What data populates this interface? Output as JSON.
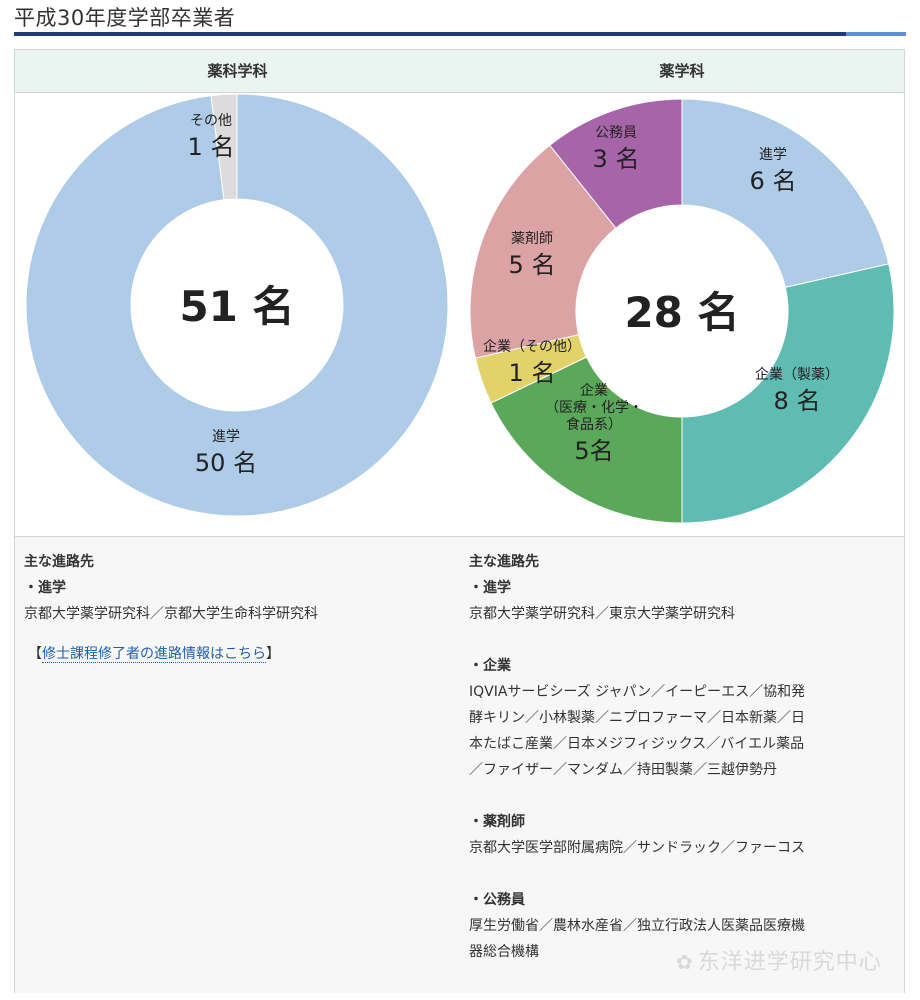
{
  "page_title": "平成30年度学部卒業者",
  "columns": [
    {
      "header": "薬科学科",
      "center_label": "51 名",
      "info": {
        "heading": "主な進路先",
        "sections": [
          {
            "title": "・進学",
            "text": "京都大学薬学研究科／京都大学生命科学研究科"
          }
        ],
        "link_prefix": "【",
        "link_text": "修士課程修了者の進路情報はこちら",
        "link_suffix": "】"
      }
    },
    {
      "header": "薬学科",
      "center_label": "28 名",
      "info": {
        "heading": "主な進路先",
        "sections": [
          {
            "title": "・進学",
            "lines": [
              "京都大学薬学研究科／東京大学薬学研究科"
            ]
          },
          {
            "title": "・企業",
            "lines": [
              "IQVIAサービシーズ ジャパン／イーピーエス／協和発",
              "酵キリン／小林製薬／ニプロファーマ／日本新薬／日",
              "本たばこ産業／日本メジフィジックス／バイエル薬品",
              "／ファイザー／マンダム／持田製薬／三越伊勢丹"
            ]
          },
          {
            "title": "・薬剤師",
            "lines": [
              "京都大学医学部附属病院／サンドラック／ファーコス"
            ]
          },
          {
            "title": "・公務員",
            "lines": [
              "厚生労働省／農林水産省／独立行政法人医薬品医療機",
              "器総合機構"
            ]
          }
        ]
      }
    }
  ],
  "chart_data": [
    {
      "type": "pie",
      "title": "薬科学科",
      "total_label": "51 名",
      "slices": [
        {
          "label": "進学",
          "value": 50,
          "value_label": "50 名",
          "color": "#aecbe8"
        },
        {
          "label": "その他",
          "value": 1,
          "value_label": "1 名",
          "color": "#dcdcdc"
        }
      ]
    },
    {
      "type": "pie",
      "title": "薬学科",
      "total_label": "28 名",
      "slices": [
        {
          "label": "進学",
          "value": 6,
          "value_label": "6 名",
          "color": "#aecbe8"
        },
        {
          "label": "企業（製薬）",
          "value": 8,
          "value_label": "8 名",
          "color": "#5fbcb3"
        },
        {
          "label": "企業（医療・化学・食品系）",
          "label_lines": [
            "企業",
            "（医療・化学・",
            "食品系）"
          ],
          "value": 5,
          "value_label": "5名",
          "color": "#5aa85a"
        },
        {
          "label": "企業（その他）",
          "value": 1,
          "value_label": "1 名",
          "color": "#e2d26a"
        },
        {
          "label": "薬剤師",
          "value": 5,
          "value_label": "5 名",
          "color": "#dca3a5"
        },
        {
          "label": "公務員",
          "value": 3,
          "value_label": "3 名",
          "color": "#a765a9"
        }
      ]
    }
  ],
  "watermark": "东洋进学研究中心"
}
